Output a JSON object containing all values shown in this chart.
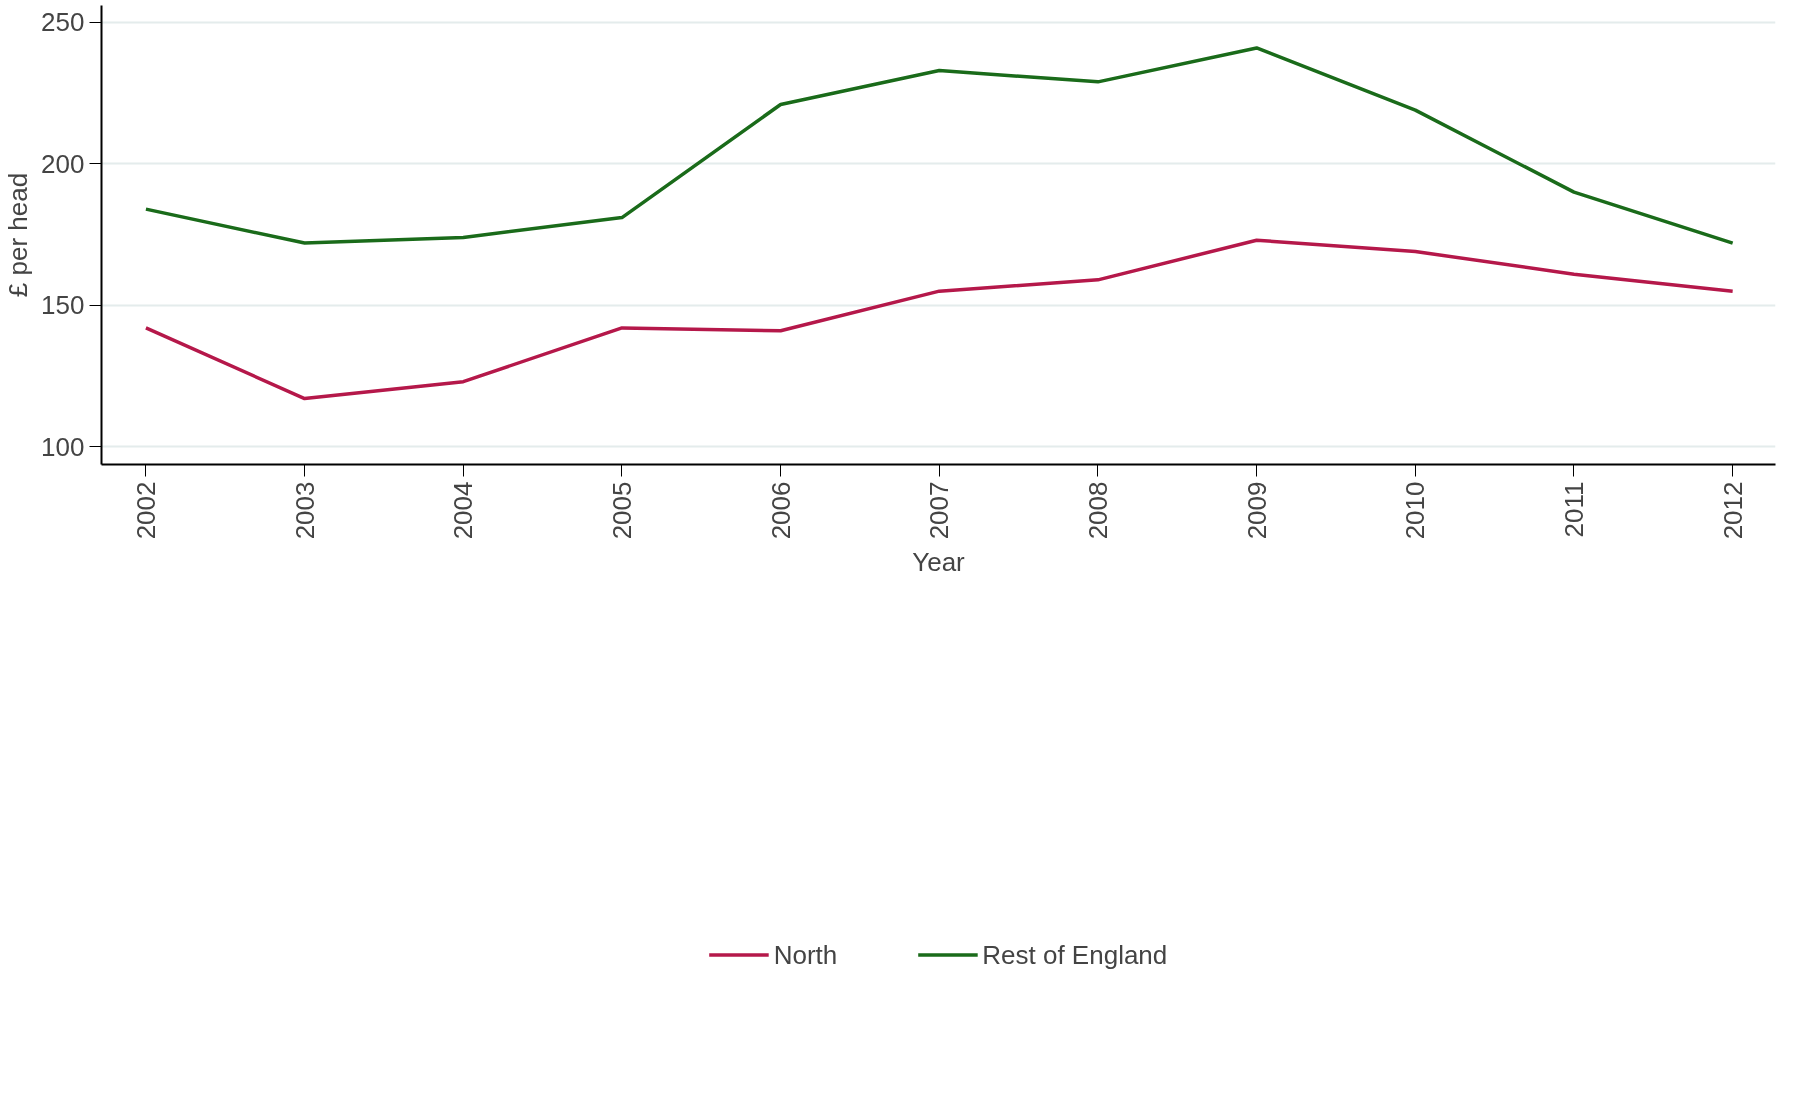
{
  "chart_data": {
    "type": "line",
    "xlabel": "Year",
    "ylabel": "£ per head",
    "x": [
      2002,
      2003,
      2004,
      2005,
      2006,
      2007,
      2008,
      2009,
      2010,
      2011,
      2012
    ],
    "series": [
      {
        "name": "North",
        "color": "#b5184a",
        "values": [
          142,
          117,
          123,
          142,
          141,
          155,
          159,
          173,
          169,
          161,
          155
        ]
      },
      {
        "name": "Rest of England",
        "color": "#1a6b1a",
        "values": [
          184,
          172,
          174,
          181,
          221,
          233,
          229,
          241,
          219,
          190,
          172
        ]
      }
    ],
    "xlim": [
      2001.72,
      2012.27
    ],
    "xticks": [
      2002,
      2003,
      2004,
      2005,
      2006,
      2007,
      2008,
      2009,
      2010,
      2011,
      2012
    ],
    "ylim": [
      93.7,
      256
    ],
    "yticks": [
      100,
      150,
      200,
      250
    ],
    "grid": "y",
    "legend": "bottom",
    "marker": "none",
    "line_style": "solid"
  }
}
